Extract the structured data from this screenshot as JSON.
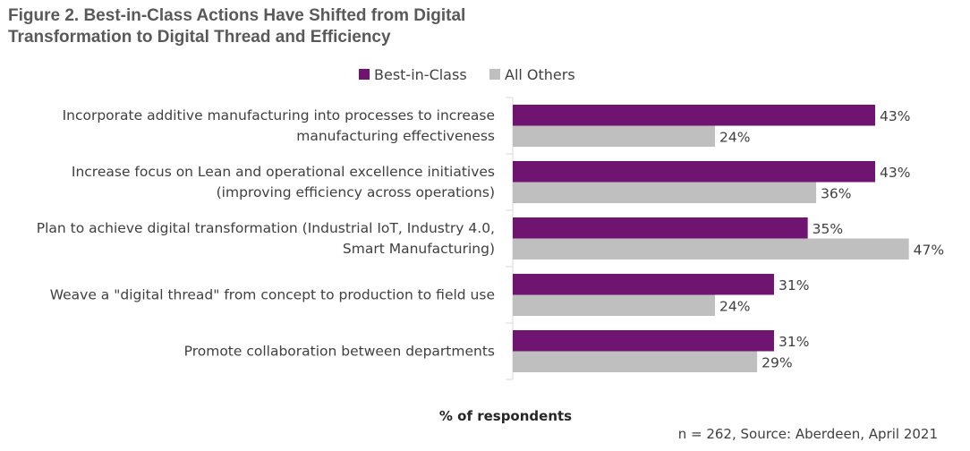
{
  "chart_data": {
    "type": "bar",
    "orientation": "horizontal",
    "title": "Figure 2. Best-in-Class Actions Have Shifted from Digital Transformation to Digital Thread and Efficiency",
    "categories": [
      [
        "Incorporate additive manufacturing into processes to increase",
        "manufacturing effectiveness"
      ],
      [
        "Increase focus on Lean and operational excellence initiatives",
        "(improving efficiency across operations)"
      ],
      [
        "Plan to achieve digital transformation (Industrial IoT, Industry 4.0,",
        "Smart Manufacturing)"
      ],
      [
        "Weave a \"digital thread\" from concept to production to field use"
      ],
      [
        "Promote collaboration between departments"
      ]
    ],
    "series": [
      {
        "name": "Best-in-Class",
        "color": "#6f1470",
        "values": [
          43,
          43,
          35,
          31,
          31
        ]
      },
      {
        "name": "All Others",
        "color": "#bfbfbf",
        "values": [
          24,
          36,
          47,
          24,
          29
        ]
      }
    ],
    "value_suffix": "%",
    "xlabel": "% of respondents",
    "xlim": [
      0,
      50
    ],
    "grid": false,
    "legend": "top-center",
    "note": "n = 262, Source: Aberdeen, April 2021"
  }
}
